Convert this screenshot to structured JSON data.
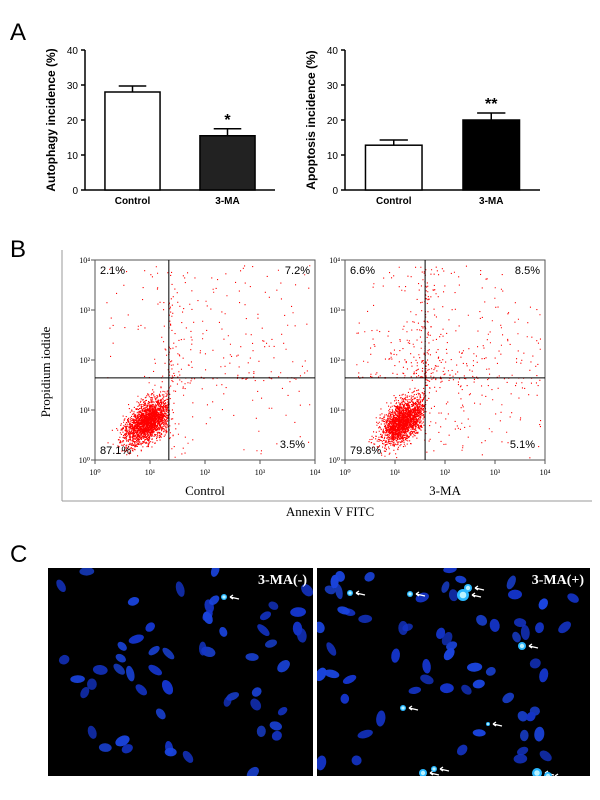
{
  "panel_labels": [
    "A",
    "B",
    "C"
  ],
  "chart_data": [
    {
      "type": "bar",
      "ylabel": "Autophagy incidence (%)",
      "categories": [
        "Control",
        "3-MA"
      ],
      "values": [
        28,
        15.5
      ],
      "errors": [
        1.7,
        2
      ],
      "colors": [
        "#ffffff",
        "#222222"
      ],
      "annotations": [
        {
          "x": "3-MA",
          "text": "*"
        }
      ],
      "ylim": [
        0,
        40
      ],
      "yticks": [
        0,
        10,
        20,
        30,
        40
      ]
    },
    {
      "type": "bar",
      "ylabel": "Apoptosis incidence (%)",
      "categories": [
        "Control",
        "3-MA"
      ],
      "values": [
        12.8,
        20
      ],
      "errors": [
        1.5,
        2
      ],
      "colors": [
        "#ffffff",
        "#000000"
      ],
      "annotations": [
        {
          "x": "3-MA",
          "text": "**"
        }
      ],
      "ylim": [
        0,
        40
      ],
      "yticks": [
        0,
        10,
        20,
        30,
        40
      ]
    },
    {
      "type": "flow",
      "xlabel": "Control",
      "log": true,
      "color": "#ff0000",
      "xlim": [
        1,
        10000
      ],
      "ylim": [
        1,
        10000
      ],
      "xticks": [
        {
          "value": 1,
          "label": "10⁰"
        },
        {
          "value": 10,
          "label": "10¹"
        },
        {
          "value": 100,
          "label": "10²"
        },
        {
          "value": 1000,
          "label": "10³"
        },
        {
          "value": 10000,
          "label": "10⁴"
        }
      ],
      "yticks": [
        {
          "value": 1,
          "label": "10⁰"
        },
        {
          "value": 10,
          "label": "10¹"
        },
        {
          "value": 100,
          "label": "10²"
        },
        {
          "value": 1000,
          "label": "10³"
        },
        {
          "value": 10000,
          "label": "10⁴"
        }
      ],
      "gate": [
        22,
        44
      ],
      "quadrant_values": [
        2.1,
        7.2,
        87.1,
        3.5
      ],
      "quadrant_labels": [
        "2.1%",
        "7.2%",
        "87.1%",
        "3.5%"
      ]
    },
    {
      "type": "flow",
      "xlabel": "3-MA",
      "log": true,
      "color": "#ff0000",
      "xlim": [
        1,
        10000
      ],
      "ylim": [
        1,
        10000
      ],
      "xticks": [
        {
          "value": 1,
          "label": "10⁰"
        },
        {
          "value": 10,
          "label": "10¹"
        },
        {
          "value": 100,
          "label": "10²"
        },
        {
          "value": 1000,
          "label": "10³"
        },
        {
          "value": 10000,
          "label": "10⁴"
        }
      ],
      "yticks": [
        {
          "value": 1,
          "label": "10⁰"
        },
        {
          "value": 10,
          "label": "10¹"
        },
        {
          "value": 100,
          "label": "10²"
        },
        {
          "value": 1000,
          "label": "10³"
        },
        {
          "value": 10000,
          "label": "10⁴"
        }
      ],
      "gate": [
        40,
        44
      ],
      "quadrant_values": [
        6.6,
        8.5,
        79.8,
        5.1
      ],
      "quadrant_labels": [
        "6.6%",
        "8.5%",
        "79.8%",
        "5.1%"
      ]
    }
  ],
  "flow_axes": {
    "y_label": "Propidium iodide",
    "x_label": "Annexin V FITC"
  },
  "images": [
    {
      "label": "3-MA(-)"
    },
    {
      "label": "3-MA(+)"
    }
  ]
}
